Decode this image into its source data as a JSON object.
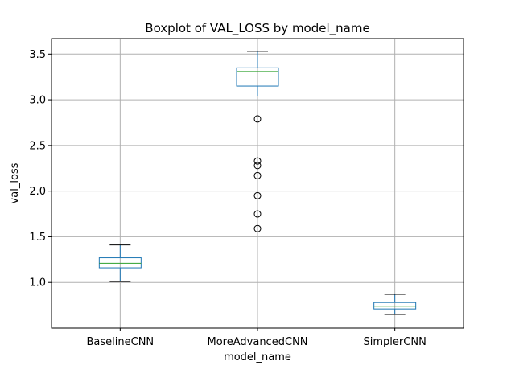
{
  "chart_data": {
    "type": "boxplot",
    "title": "Boxplot of VAL_LOSS by model_name",
    "xlabel": "model_name",
    "ylabel": "val_loss",
    "ylim": [
      0.5,
      3.67
    ],
    "yticks": [
      1.0,
      1.5,
      2.0,
      2.5,
      3.0,
      3.5
    ],
    "ytick_labels": [
      "1.0",
      "1.5",
      "2.0",
      "2.5",
      "3.0",
      "3.5"
    ],
    "grid": true,
    "categories": [
      "BaselineCNN",
      "MoreAdvancedCNN",
      "SimplerCNN"
    ],
    "boxes": [
      {
        "name": "BaselineCNN",
        "whisker_low": 1.01,
        "q1": 1.16,
        "median": 1.21,
        "q3": 1.27,
        "whisker_high": 1.41,
        "outliers": []
      },
      {
        "name": "MoreAdvancedCNN",
        "whisker_low": 3.04,
        "q1": 3.15,
        "median": 3.31,
        "q3": 3.35,
        "whisker_high": 3.53,
        "outliers": [
          2.79,
          2.33,
          2.28,
          2.17,
          1.95,
          1.75,
          1.59
        ]
      },
      {
        "name": "SimplerCNN",
        "whisker_low": 0.65,
        "q1": 0.71,
        "median": 0.74,
        "q3": 0.78,
        "whisker_high": 0.87,
        "outliers": []
      }
    ],
    "colors": {
      "box": "#1f77b4",
      "median": "#2ca02c",
      "whisker_cap": "#000000",
      "grid": "#b0b0b0",
      "outlier": "#000000"
    }
  }
}
